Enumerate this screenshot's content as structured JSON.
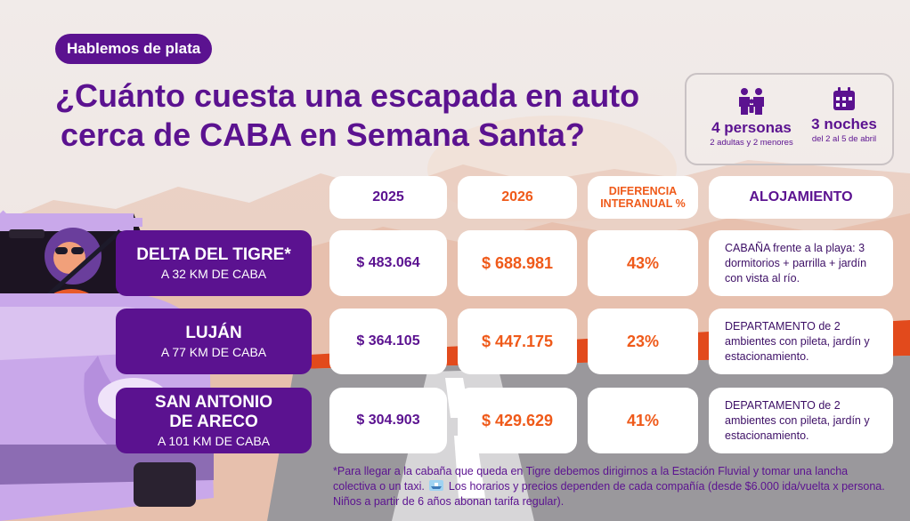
{
  "badge": "Hablemos de plata",
  "title": {
    "line1": "¿Cuánto cuesta una escapada en auto",
    "line2": "cerca de CABA en Semana Santa?"
  },
  "info": {
    "people": {
      "icon": "family-icon",
      "main": "4 personas",
      "sub": "2 adultas y 2 menores"
    },
    "nights": {
      "icon": "calendar-icon",
      "main": "3 noches",
      "sub": "del 2 al 5 de abril"
    }
  },
  "headers": {
    "y2025": "2025",
    "y2026": "2026",
    "diff_line1": "DIFERENCIA",
    "diff_line2": "INTERANUAL %",
    "lodging": "ALOJAMIENTO"
  },
  "rows": [
    {
      "name_line1": "DELTA DEL TIGRE*",
      "name_line2": "",
      "distance": "A 32 KM DE CABA",
      "p2025": "$ 483.064",
      "p2026": "$ 688.981",
      "diff": "43%",
      "lodging": "CABAÑA frente a la playa: 3 dormitorios + parrilla + jardín con vista al río."
    },
    {
      "name_line1": "LUJÁN",
      "name_line2": "",
      "distance": "A 77 KM DE CABA",
      "p2025": "$ 364.105",
      "p2026": "$ 447.175",
      "diff": "23%",
      "lodging": "DEPARTAMENTO de 2 ambientes con pileta, jardín y estacionamiento."
    },
    {
      "name_line1": "SAN ANTONIO",
      "name_line2": "DE ARECO",
      "distance": "A 101 KM DE CABA",
      "p2025": "$ 304.903",
      "p2026": "$ 429.629",
      "diff": "41%",
      "lodging": "DEPARTAMENTO de 2 ambientes con pileta, jardín y estacionamiento."
    }
  ],
  "footnote_before": "*Para llegar a la cabaña que queda en Tigre debemos dirigirnos a la Estación Fluvial y tomar una lancha colectiva o un taxi.",
  "footnote_icon": "boat-icon",
  "footnote_after": "Los horarios y precios dependen de cada compañía (desde $6.000 ida/vuelta x persona. Niños a partir de 6 años abonan tarifa regular).",
  "colors": {
    "purple": "#5b1290",
    "orange": "#ef5a1a",
    "car": "#c9a8ea"
  }
}
